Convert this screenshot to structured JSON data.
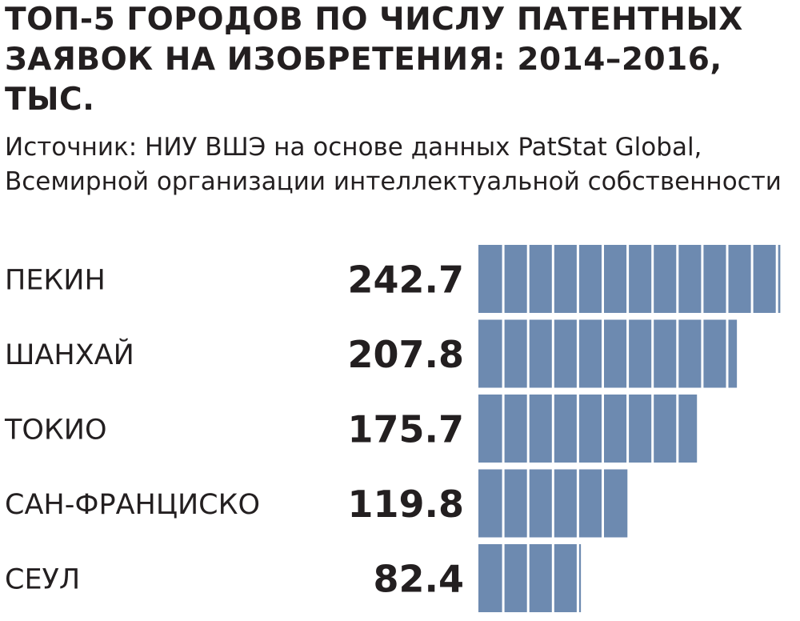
{
  "title": "ТОП-5 ГОРОДОВ ПО ЧИСЛУ ПАТЕНТНЫХ ЗАЯВОК НА ИЗОБРЕТЕНИЯ: 2014–2016, ТЫС.",
  "source": "Источник: НИУ ВШЭ на основе данных PatStat Global, Всемирной организации интеллектуальной собственности",
  "colors": {
    "bar": "#6d8ab0",
    "segment_line": "#ffffff",
    "text": "#231f20"
  },
  "chart_data": {
    "type": "bar",
    "orientation": "horizontal",
    "title": "ТОП-5 ГОРОДОВ ПО ЧИСЛУ ПАТЕНТНЫХ ЗАЯВОК НА ИЗОБРЕТЕНИЯ: 2014–2016, ТЫС.",
    "categories": [
      "ПЕКИН",
      "ШАНХАЙ",
      "ТОКИО",
      "САН-ФРАНЦИСКО",
      "СЕУЛ"
    ],
    "values": [
      242.7,
      207.8,
      175.7,
      119.8,
      82.4
    ],
    "value_labels": [
      "242.7",
      "207.8",
      "175.7",
      "119.8",
      "82.4"
    ],
    "segment_size": 20,
    "xlabel": "",
    "ylabel": "",
    "grid": false,
    "legend": "none"
  }
}
